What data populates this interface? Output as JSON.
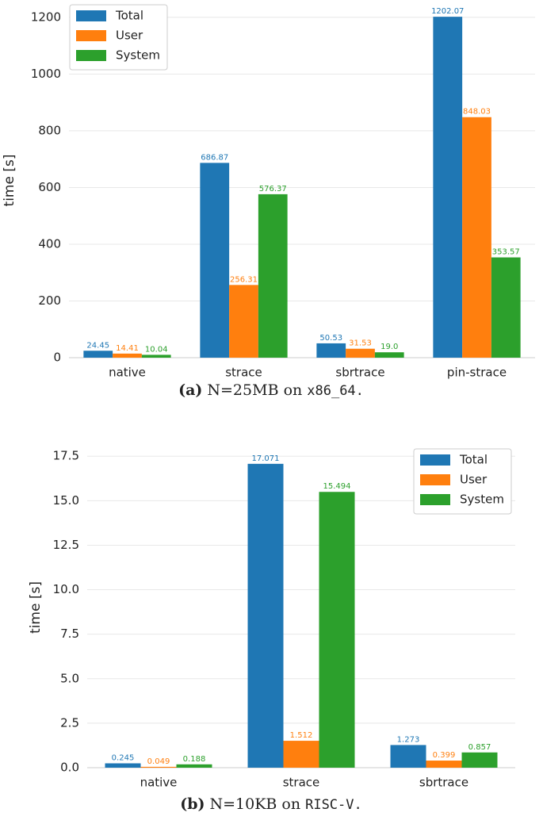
{
  "chart_data": [
    {
      "type": "bar",
      "ylabel": "time [s]",
      "caption": [
        "(a)",
        "N=25MB on",
        "x86_64."
      ],
      "categories": [
        "native",
        "strace",
        "sbrtrace",
        "pin-strace"
      ],
      "series": [
        {
          "name": "Total",
          "color": "#1f77b4",
          "values": [
            24.45,
            686.87,
            50.53,
            1202.07
          ]
        },
        {
          "name": "User",
          "color": "#ff7f0e",
          "values": [
            14.41,
            256.31,
            31.53,
            848.03
          ]
        },
        {
          "name": "System",
          "color": "#2ca02c",
          "values": [
            10.04,
            576.37,
            19.0,
            353.57
          ],
          "value_labels": [
            "10.04",
            "576.37",
            "19.0",
            "353.57"
          ]
        }
      ],
      "ylim": [
        0,
        1250
      ],
      "yticks": [
        0,
        200,
        400,
        600,
        800,
        1000,
        1200
      ],
      "grid": true,
      "legend": "upper left"
    },
    {
      "type": "bar",
      "ylabel": "time [s]",
      "caption": [
        "(b)",
        "N=10KB on",
        "RISC-V."
      ],
      "categories": [
        "native",
        "strace",
        "sbrtrace"
      ],
      "series": [
        {
          "name": "Total",
          "color": "#1f77b4",
          "values": [
            0.245,
            17.071,
            1.273
          ]
        },
        {
          "name": "User",
          "color": "#ff7f0e",
          "values": [
            0.049,
            1.512,
            0.399
          ]
        },
        {
          "name": "System",
          "color": "#2ca02c",
          "values": [
            0.188,
            15.494,
            0.857
          ]
        }
      ],
      "ylim": [
        0,
        18
      ],
      "yticks": [
        {
          "value": 0,
          "label": "0.0"
        },
        2.5,
        {
          "value": 5,
          "label": "5.0"
        },
        7.5,
        {
          "value": 10,
          "label": "10.0"
        },
        12.5,
        {
          "value": 15,
          "label": "15.0"
        },
        17.5
      ],
      "grid": true,
      "legend": "upper right"
    }
  ]
}
